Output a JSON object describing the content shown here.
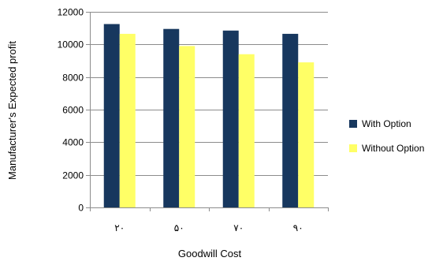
{
  "chart_data": {
    "type": "bar",
    "title": "",
    "xlabel": "Goodwill Cost",
    "ylabel": "Manufacturer's Expected profit",
    "categories": [
      "۲۰",
      "۵۰",
      "۷۰",
      "۹۰"
    ],
    "series": [
      {
        "name": "With Option",
        "color": "#17375E",
        "values": [
          11250,
          10950,
          10850,
          10650
        ]
      },
      {
        "name": "Without Option",
        "color": "#FFFF66",
        "values": [
          10650,
          9900,
          9400,
          8900
        ]
      }
    ],
    "ylim": [
      0,
      12000
    ],
    "yticks": [
      "0",
      "2000",
      "4000",
      "6000",
      "8000",
      "10000",
      "12000"
    ],
    "grid": true,
    "legend_position": "right"
  }
}
